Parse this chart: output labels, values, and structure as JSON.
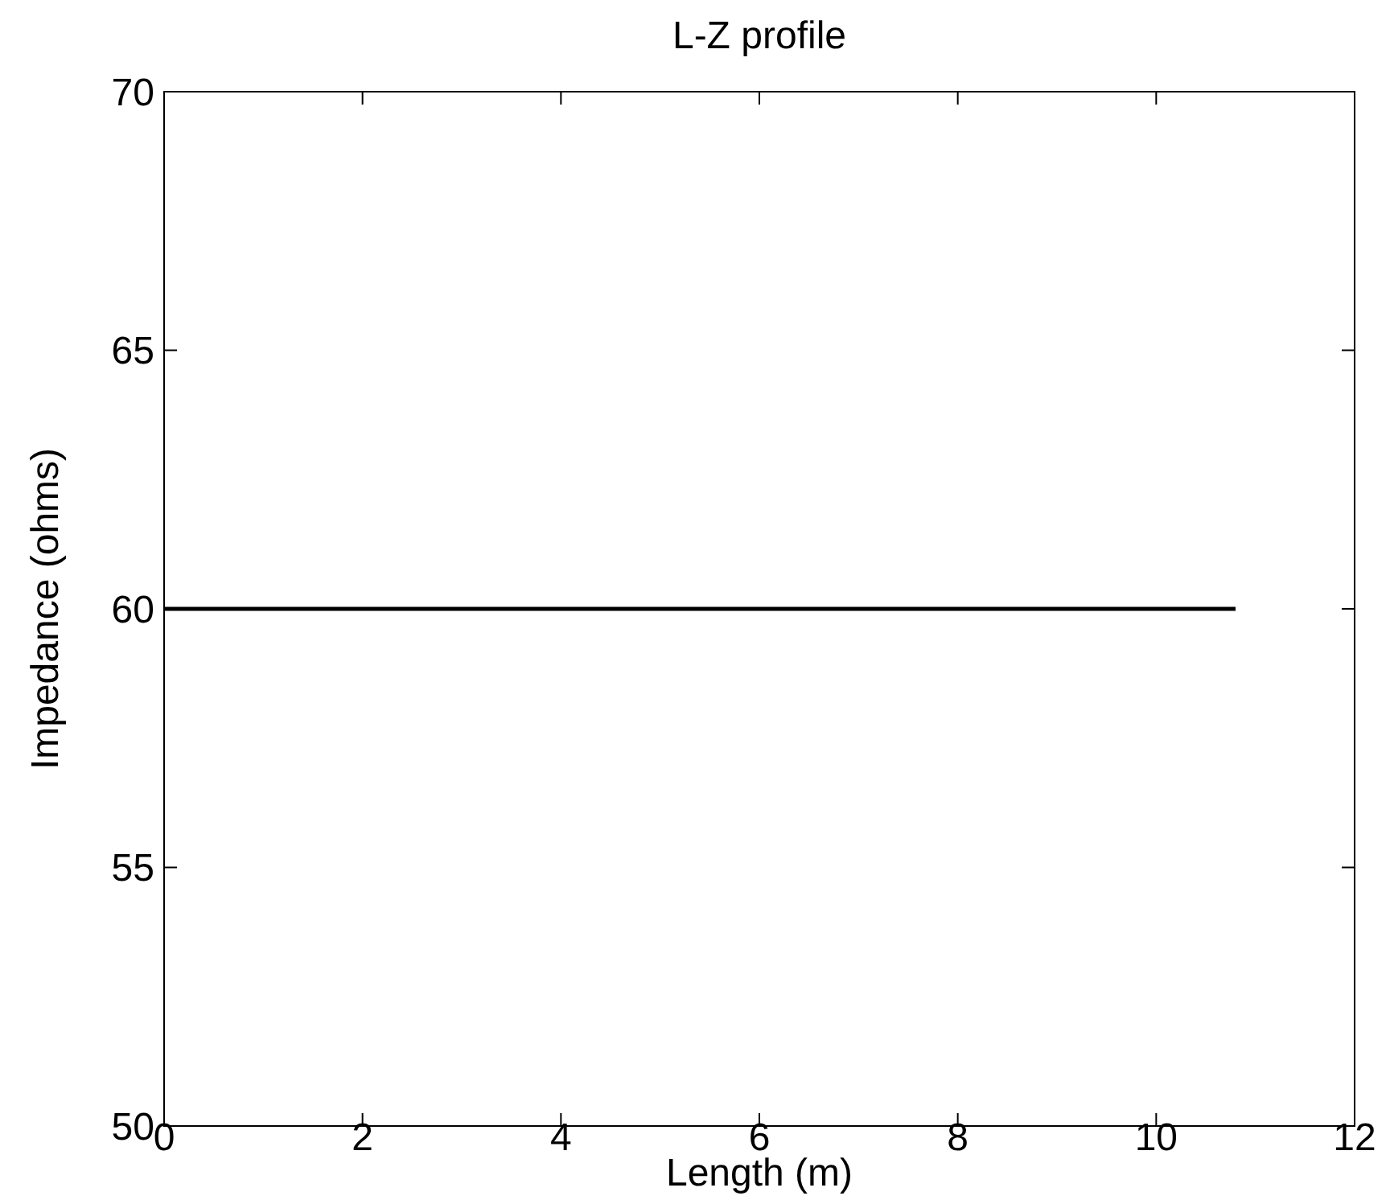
{
  "chart_data": {
    "type": "line",
    "title": "L-Z profile",
    "xlabel": "Length (m)",
    "ylabel": "Impedance (ohms)",
    "x": [
      0,
      10.8
    ],
    "series": [
      {
        "color": "#000000",
        "values": [
          60,
          60
        ]
      }
    ],
    "xlim": [
      0,
      12
    ],
    "xticks": [
      0,
      2,
      4,
      6,
      8,
      10,
      12
    ],
    "ylim": [
      50,
      70
    ],
    "yticks": [
      50,
      55,
      60,
      65,
      70
    ],
    "grid": false,
    "marker": "none",
    "line_style": "solid"
  }
}
